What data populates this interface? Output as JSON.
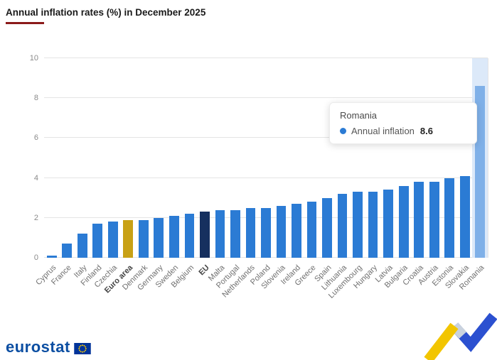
{
  "title": "Annual inflation rates (%) in December 2025",
  "tooltip": {
    "country": "Romania",
    "series_label": "Annual inflation",
    "value": "8.6"
  },
  "logo_text": "eurostat",
  "colors": {
    "bar_default": "#2b7bd4",
    "bar_euroarea": "#c8a115",
    "bar_eu": "#16305f",
    "bar_hover": "#7fb0e8",
    "band": "#dce9f9",
    "grid": "#e4e4e4",
    "title_underline": "#8b1a1a",
    "logo_blue": "#0b4ea2",
    "accent_yellow": "#f2c500",
    "accent_blue": "#2b50d0",
    "accent_silver": "#c9d2de"
  },
  "chart_data": {
    "type": "bar",
    "title": "Annual inflation rates (%) in December 2025",
    "xlabel": "",
    "ylabel": "",
    "ylim": [
      0,
      10
    ],
    "yticks": [
      0,
      2,
      4,
      6,
      8,
      10
    ],
    "grid": true,
    "categories": [
      "Cyprus",
      "France",
      "Italy",
      "Finland",
      "Czechia",
      "Euro area",
      "Denmark",
      "Germany",
      "Sweden",
      "Belgium",
      "EU",
      "Malta",
      "Portugal",
      "Netherlands",
      "Poland",
      "Slovenia",
      "Ireland",
      "Greece",
      "Spain",
      "Lithuania",
      "Luxembourg",
      "Hungary",
      "Latvia",
      "Bulgaria",
      "Croatia",
      "Austria",
      "Estonia",
      "Slovakia",
      "Romania"
    ],
    "values": [
      0.1,
      0.7,
      1.2,
      1.7,
      1.8,
      1.9,
      1.9,
      2.0,
      2.1,
      2.2,
      2.3,
      2.4,
      2.4,
      2.5,
      2.5,
      2.6,
      2.7,
      2.8,
      3.0,
      3.2,
      3.3,
      3.3,
      3.4,
      3.6,
      3.8,
      3.8,
      4.0,
      4.1,
      8.6
    ],
    "bold_labels": [
      "Euro area",
      "EU"
    ],
    "styles": {
      "Euro area": "euroarea",
      "EU": "eu",
      "Romania": "hover"
    },
    "highlighted": "Romania",
    "series_name": "Annual inflation"
  }
}
